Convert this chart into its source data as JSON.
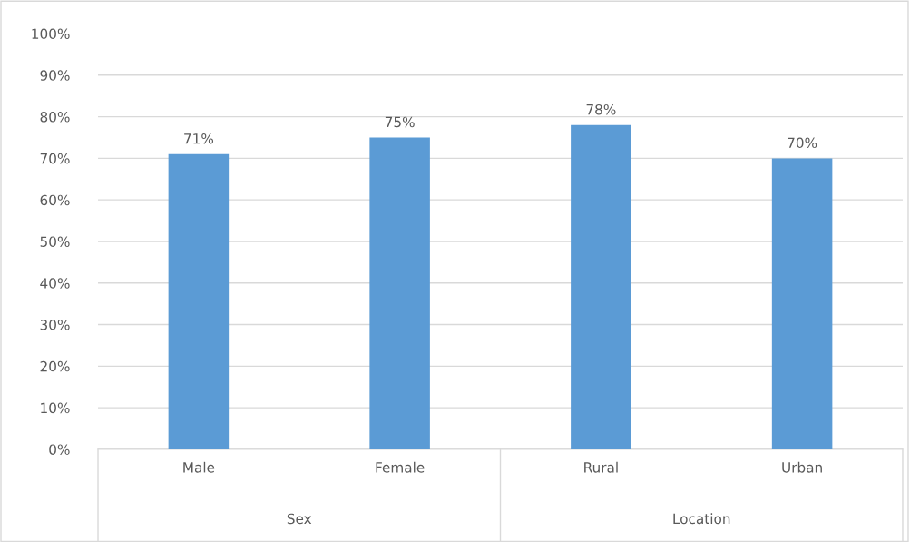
{
  "chart_data": {
    "type": "bar",
    "categories": [
      "Male",
      "Female",
      "Rural",
      "Urban"
    ],
    "values": [
      71,
      75,
      78,
      70
    ],
    "value_labels": [
      "71%",
      "75%",
      "78%",
      "70%"
    ],
    "color": "#5b9bd5",
    "ylim": [
      0,
      100
    ],
    "yticks": [
      {
        "value": 0,
        "label": "0%"
      },
      {
        "value": 10,
        "label": "10%"
      },
      {
        "value": 20,
        "label": "20%"
      },
      {
        "value": 30,
        "label": "30%"
      },
      {
        "value": 40,
        "label": "40%"
      },
      {
        "value": 50,
        "label": "50%"
      },
      {
        "value": 60,
        "label": "60%"
      },
      {
        "value": 70,
        "label": "70%"
      },
      {
        "value": 80,
        "label": "80%"
      },
      {
        "value": 90,
        "label": "90%"
      },
      {
        "value": 100,
        "label": "100%"
      }
    ],
    "grid": "y",
    "annotations": [
      "Sex",
      "Location"
    ]
  }
}
